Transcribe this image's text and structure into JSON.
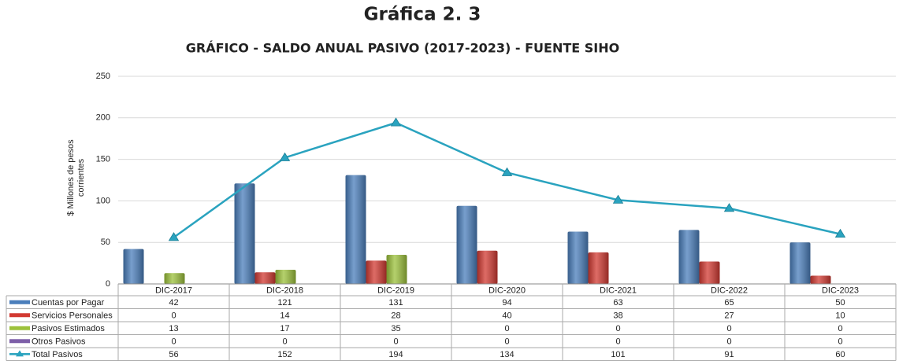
{
  "chart_data": {
    "type": "bar",
    "title": "Gráfica 2. 3",
    "subtitle": "GRÁFICO - SALDO ANUAL PASIVO (2017-2023) - FUENTE SIHO",
    "y_label": "$ Millones de pesos corrientes",
    "categories": [
      "DIC-2017",
      "DIC-2018",
      "DIC-2019",
      "DIC-2020",
      "DIC-2021",
      "DIC-2022",
      "DIC-2023"
    ],
    "series": [
      {
        "name": "Cuentas por Pagar",
        "type": "bar",
        "color": "#4a7ebb",
        "values": [
          42,
          121,
          131,
          94,
          63,
          65,
          50
        ]
      },
      {
        "name": "Servicios Personales",
        "type": "bar",
        "color": "#d23a32",
        "values": [
          0,
          14,
          28,
          40,
          38,
          27,
          10
        ]
      },
      {
        "name": "Pasivos Estimados",
        "type": "bar",
        "color": "#9cc13b",
        "values": [
          13,
          17,
          35,
          0,
          0,
          0,
          0
        ]
      },
      {
        "name": "Otros Pasivos",
        "type": "bar",
        "color": "#7d5fa8",
        "values": [
          0,
          0,
          0,
          0,
          0,
          0,
          0
        ]
      },
      {
        "name": "Total Pasivos",
        "type": "line",
        "color": "#2aa3bf",
        "values": [
          56,
          152,
          194,
          134,
          101,
          91,
          60
        ]
      }
    ],
    "ylim": [
      0,
      250
    ],
    "yticks": [
      0,
      50,
      100,
      150,
      200,
      250
    ],
    "grid": true,
    "data_table": true
  }
}
